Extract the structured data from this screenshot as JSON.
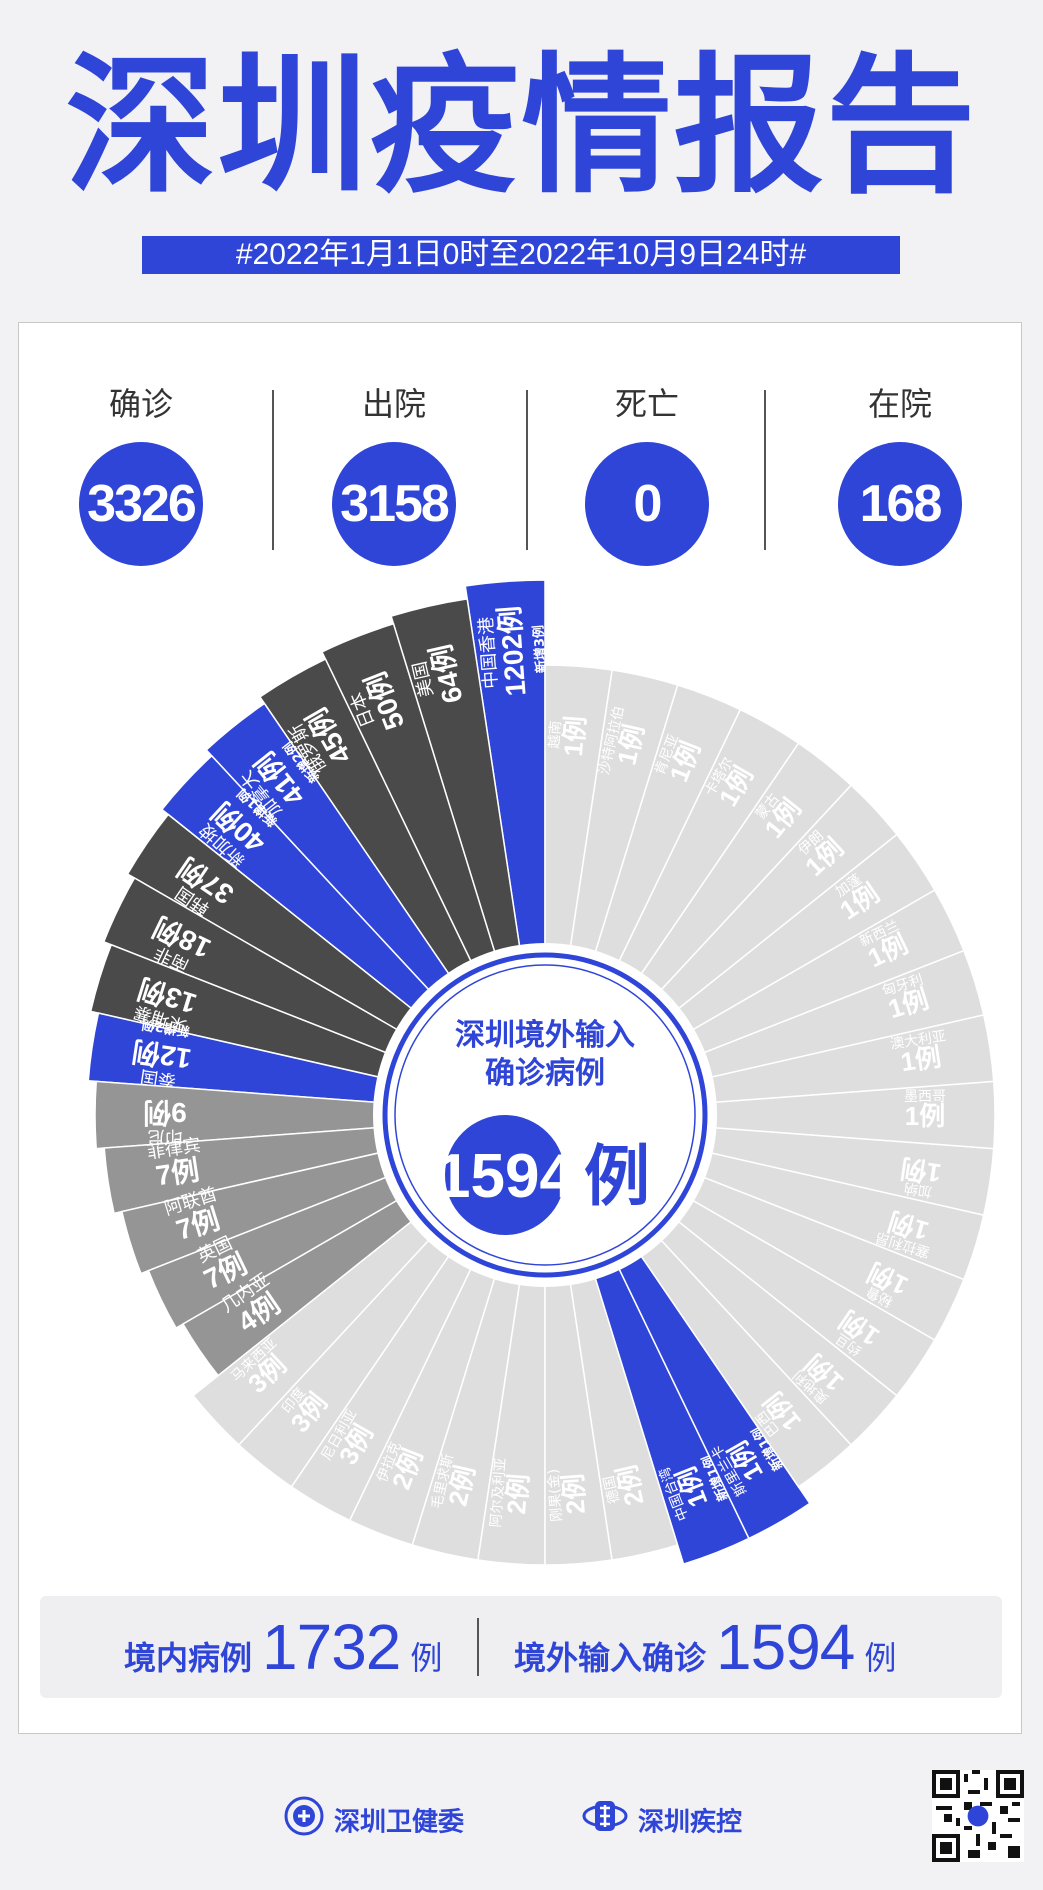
{
  "header": {
    "title": "深圳疫情报告",
    "date_range": "#2022年1月1日0时至2022年10月9日24时#"
  },
  "stats": [
    {
      "label": "确诊",
      "value": "3326"
    },
    {
      "label": "出院",
      "value": "3158"
    },
    {
      "label": "死亡",
      "value": "0"
    },
    {
      "label": "在院",
      "value": "168"
    }
  ],
  "center": {
    "line1": "深圳境外输入",
    "line2": "确诊病例",
    "number": "1594",
    "unit": "例"
  },
  "colors": {
    "accent": "#2f45d8",
    "dark": "#4a4a4a",
    "mid": "#959595",
    "light": "#dedede",
    "white": "#ffffff"
  },
  "chart_data": {
    "type": "pie",
    "unit": "例",
    "slices": [
      {
        "name": "中国香港",
        "value": 1202,
        "new": "新增3例",
        "tone": "accent"
      },
      {
        "name": "美国",
        "value": 64,
        "tone": "dark"
      },
      {
        "name": "日本",
        "value": 50,
        "tone": "dark"
      },
      {
        "name": "俄罗斯",
        "value": 45,
        "tone": "dark"
      },
      {
        "name": "加拿大",
        "value": 41,
        "new": "新增2例",
        "tone": "accent"
      },
      {
        "name": "新加坡",
        "value": 40,
        "new": "新增1例",
        "tone": "accent"
      },
      {
        "name": "韩国",
        "value": 37,
        "tone": "dark"
      },
      {
        "name": "南非",
        "value": 18,
        "tone": "dark"
      },
      {
        "name": "柬埔寨",
        "value": 13,
        "tone": "dark"
      },
      {
        "name": "泰国",
        "value": 12,
        "new": "新增2例",
        "tone": "accent"
      },
      {
        "name": "印尼",
        "value": 9,
        "tone": "mid"
      },
      {
        "name": "菲律宾",
        "value": 7,
        "tone": "mid"
      },
      {
        "name": "阿联酋",
        "value": 7,
        "tone": "mid"
      },
      {
        "name": "英国",
        "value": 7,
        "tone": "mid"
      },
      {
        "name": "几内亚",
        "value": 4,
        "tone": "mid"
      },
      {
        "name": "马来西亚",
        "value": 3,
        "tone": "light"
      },
      {
        "name": "印度",
        "value": 3,
        "tone": "light"
      },
      {
        "name": "尼日利亚",
        "value": 3,
        "tone": "light"
      },
      {
        "name": "伊拉克",
        "value": 2,
        "tone": "light"
      },
      {
        "name": "毛里求斯",
        "value": 2,
        "tone": "light"
      },
      {
        "name": "阿尔及利亚",
        "value": 2,
        "tone": "light"
      },
      {
        "name": "刚果(金)",
        "value": 2,
        "tone": "light"
      },
      {
        "name": "德国",
        "value": 2,
        "tone": "light"
      },
      {
        "name": "中国台湾",
        "value": 1,
        "new": "新增1例",
        "tone": "accent"
      },
      {
        "name": "斯里兰卡",
        "value": 1,
        "new": "新增1例",
        "tone": "accent"
      },
      {
        "name": "巴西",
        "value": 1,
        "tone": "light"
      },
      {
        "name": "奥地利",
        "value": 1,
        "tone": "light"
      },
      {
        "name": "约旦",
        "value": 1,
        "tone": "light"
      },
      {
        "name": "秘鲁",
        "value": 1,
        "tone": "light"
      },
      {
        "name": "塞拉利昂",
        "value": 1,
        "tone": "light"
      },
      {
        "name": "加纳",
        "value": 1,
        "tone": "light"
      },
      {
        "name": "墨西哥",
        "value": 1,
        "tone": "light"
      },
      {
        "name": "澳大利亚",
        "value": 1,
        "tone": "light"
      },
      {
        "name": "匈牙利",
        "value": 1,
        "tone": "light"
      },
      {
        "name": "新西兰",
        "value": 1,
        "tone": "light"
      },
      {
        "name": "加蓬",
        "value": 1,
        "tone": "light"
      },
      {
        "name": "伊朗",
        "value": 1,
        "tone": "light"
      },
      {
        "name": "蒙古",
        "value": 1,
        "tone": "light"
      },
      {
        "name": "卡塔尔",
        "value": 1,
        "tone": "light"
      },
      {
        "name": "肯尼亚",
        "value": 1,
        "tone": "light"
      },
      {
        "name": "沙特阿拉伯",
        "value": 1,
        "tone": "light"
      },
      {
        "name": "越南",
        "value": 1,
        "tone": "light"
      }
    ]
  },
  "summary": {
    "domestic_label": "境内病例",
    "domestic_value": "1732",
    "domestic_unit": "例",
    "imported_label": "境外输入确诊",
    "imported_value": "1594",
    "imported_unit": "例"
  },
  "footer": {
    "org1": "深圳卫健委",
    "org2": "深圳疾控"
  }
}
